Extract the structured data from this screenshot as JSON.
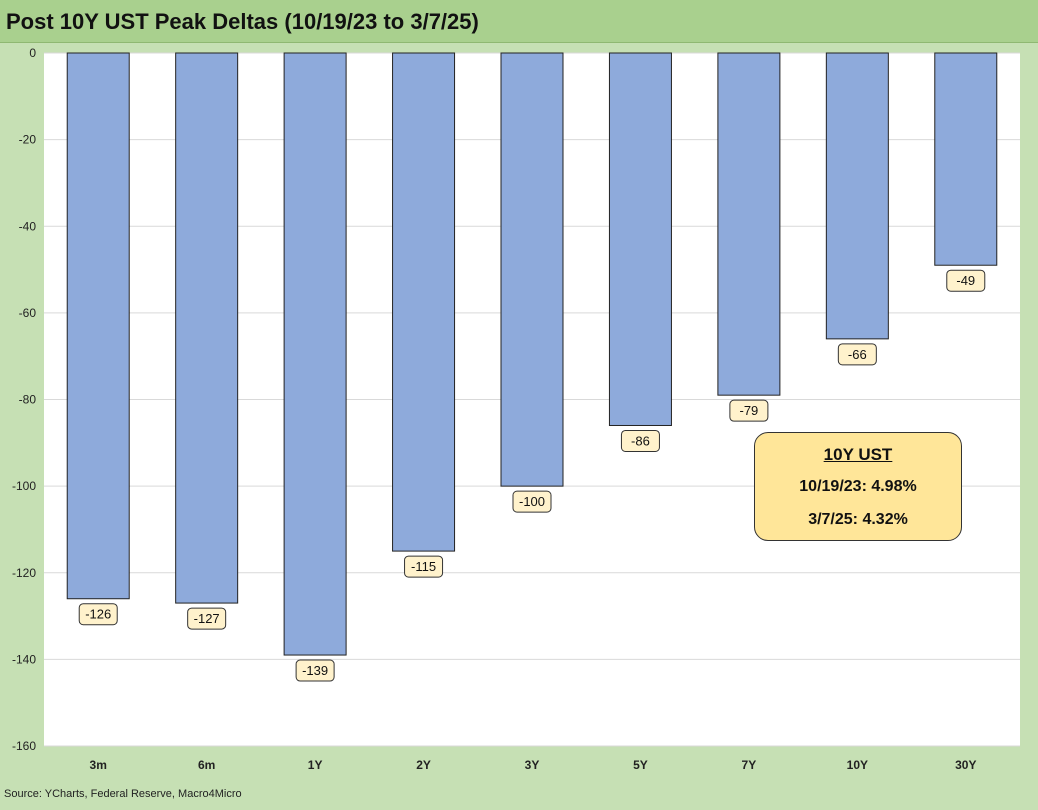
{
  "chart_data": {
    "type": "bar",
    "title": "Post 10Y UST Peak Deltas (10/19/23 to 3/7/25)",
    "categories": [
      "3m",
      "6m",
      "1Y",
      "2Y",
      "3Y",
      "5Y",
      "7Y",
      "10Y",
      "30Y"
    ],
    "values": [
      -126,
      -127,
      -139,
      -115,
      -100,
      -86,
      -79,
      -66,
      -49
    ],
    "data_labels": [
      "-126",
      "-127",
      "-139",
      "-115",
      "-100",
      "-86",
      "-79",
      "-66",
      "-49"
    ],
    "ylim": [
      -160,
      0
    ],
    "y_ticks": [
      0,
      -20,
      -40,
      -60,
      -80,
      -100,
      -120,
      -140,
      -160
    ],
    "y_tick_labels": [
      "0",
      "-20",
      "-40",
      "-60",
      "-80",
      "-100",
      "-120",
      "-140",
      "-160"
    ],
    "xlabel": "",
    "ylabel": "",
    "grid": true,
    "bar_color": "#8eaadb",
    "label_fill": "#fff2cc"
  },
  "info_box": {
    "title": "10Y UST",
    "line1": "10/19/23: 4.98%",
    "line2": "3/7/25: 4.32%"
  },
  "source": "Source: YCharts, Federal Reserve, Macro4Micro"
}
